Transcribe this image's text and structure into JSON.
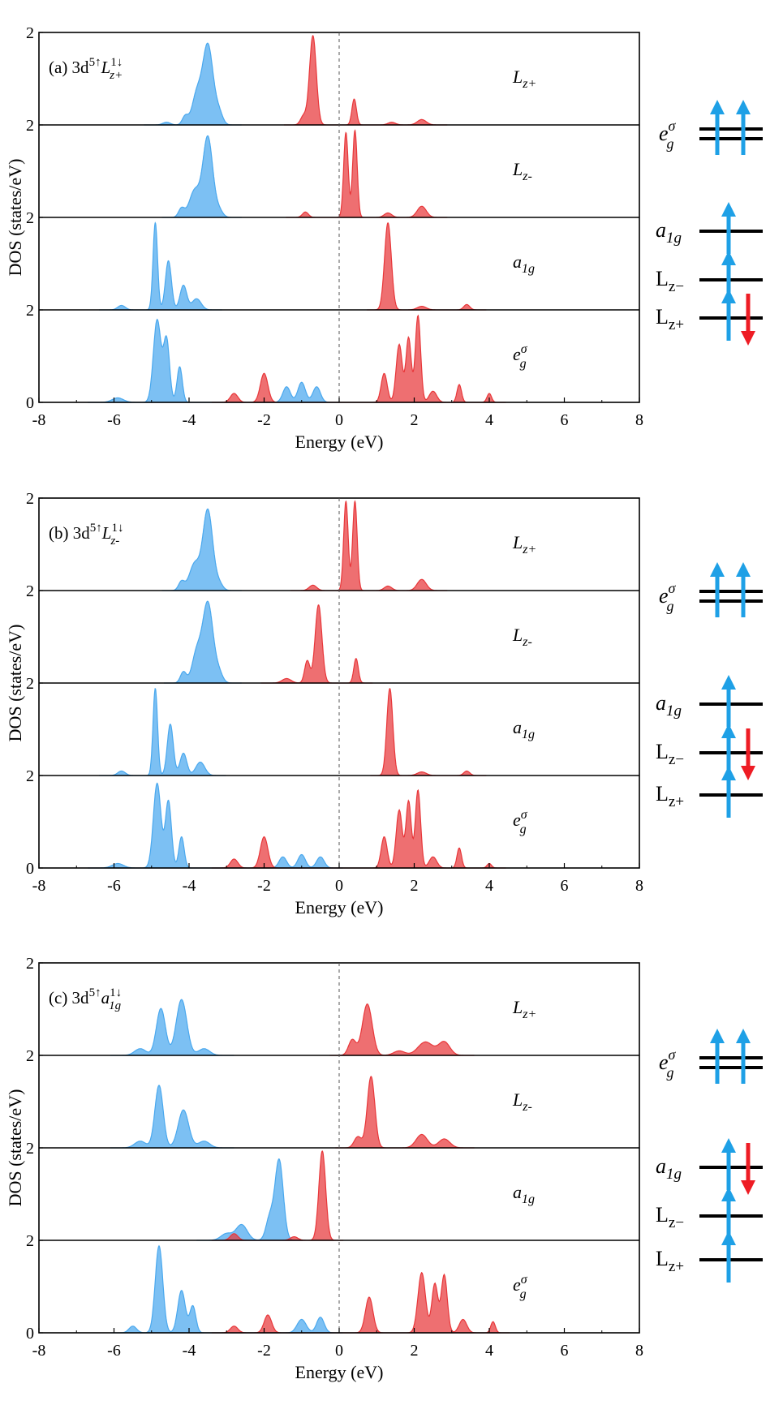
{
  "chart_data": [
    {
      "type": "area",
      "panel_label": "(a) 3d",
      "config_sup": "5↑",
      "config_orbital": "L",
      "config_sub": "z+",
      "config_orbsup": "1↓",
      "xlabel": "Energy (eV)",
      "ylabel": "DOS (states/eV)",
      "xlim": [
        -8,
        8
      ],
      "ylim": [
        0,
        2
      ],
      "x_ticks": [
        "-8",
        "-6",
        "-4",
        "-2",
        "0",
        "2",
        "4",
        "6",
        "8"
      ],
      "y_ticks": [
        "2",
        "2",
        "2",
        "2",
        "0"
      ],
      "series_colors": {
        "spin_up": "#4aa8ee",
        "spin_down": "#e8373a"
      },
      "subpanels": [
        {
          "orbital": "L",
          "sub": "z+",
          "spin_up": [
            {
              "e": -3.5,
              "h": 1.8,
              "w": 0.14
            },
            {
              "e": -3.8,
              "h": 0.65,
              "w": 0.12
            },
            {
              "e": -4.1,
              "h": 0.2,
              "w": 0.08
            },
            {
              "e": -3.2,
              "h": 0.25,
              "w": 0.1
            },
            {
              "e": -4.6,
              "h": 0.06,
              "w": 0.1
            }
          ],
          "spin_down": [
            {
              "e": -0.7,
              "h": 2.0,
              "w": 0.09
            },
            {
              "e": -0.95,
              "h": 0.2,
              "w": 0.08
            },
            {
              "e": 0.4,
              "h": 0.58,
              "w": 0.06
            },
            {
              "e": 2.2,
              "h": 0.12,
              "w": 0.12
            },
            {
              "e": 1.4,
              "h": 0.06,
              "w": 0.1
            }
          ]
        },
        {
          "orbital": "L",
          "sub": "z-",
          "spin_up": [
            {
              "e": -3.5,
              "h": 1.8,
              "w": 0.13
            },
            {
              "e": -3.85,
              "h": 0.6,
              "w": 0.14
            },
            {
              "e": -4.2,
              "h": 0.2,
              "w": 0.08
            },
            {
              "e": -3.2,
              "h": 0.15,
              "w": 0.1
            }
          ],
          "spin_down": [
            {
              "e": 0.18,
              "h": 1.9,
              "w": 0.06
            },
            {
              "e": 0.42,
              "h": 1.95,
              "w": 0.06
            },
            {
              "e": 2.2,
              "h": 0.25,
              "w": 0.12
            },
            {
              "e": 1.3,
              "h": 0.1,
              "w": 0.1
            },
            {
              "e": -0.9,
              "h": 0.12,
              "w": 0.08
            }
          ]
        },
        {
          "orbital": "a",
          "sub": "1g",
          "spin_up": [
            {
              "e": -4.9,
              "h": 1.95,
              "w": 0.06
            },
            {
              "e": -4.55,
              "h": 1.1,
              "w": 0.08
            },
            {
              "e": -4.15,
              "h": 0.55,
              "w": 0.09
            },
            {
              "e": -3.8,
              "h": 0.25,
              "w": 0.12
            },
            {
              "e": -5.8,
              "h": 0.1,
              "w": 0.1
            }
          ],
          "spin_down": [
            {
              "e": 1.3,
              "h": 1.95,
              "w": 0.09
            },
            {
              "e": 2.2,
              "h": 0.08,
              "w": 0.12
            },
            {
              "e": 3.4,
              "h": 0.12,
              "w": 0.08
            }
          ]
        },
        {
          "orbital": "e",
          "sub": "g",
          "sup": "σ",
          "spin_up": [
            {
              "e": -4.85,
              "h": 1.85,
              "w": 0.1
            },
            {
              "e": -4.6,
              "h": 1.4,
              "w": 0.08
            },
            {
              "e": -4.25,
              "h": 0.8,
              "w": 0.07
            },
            {
              "e": -1.4,
              "h": 0.35,
              "w": 0.1
            },
            {
              "e": -1.0,
              "h": 0.45,
              "w": 0.1
            },
            {
              "e": -0.6,
              "h": 0.35,
              "w": 0.1
            },
            {
              "e": -5.9,
              "h": 0.1,
              "w": 0.15
            }
          ],
          "spin_down": [
            {
              "e": -2.0,
              "h": 0.65,
              "w": 0.1
            },
            {
              "e": -2.8,
              "h": 0.2,
              "w": 0.1
            },
            {
              "e": 1.2,
              "h": 0.65,
              "w": 0.08
            },
            {
              "e": 1.6,
              "h": 1.3,
              "w": 0.08
            },
            {
              "e": 1.85,
              "h": 1.45,
              "w": 0.07
            },
            {
              "e": 2.1,
              "h": 1.95,
              "w": 0.07
            },
            {
              "e": 2.5,
              "h": 0.25,
              "w": 0.1
            },
            {
              "e": 3.2,
              "h": 0.4,
              "w": 0.06
            },
            {
              "e": 4.0,
              "h": 0.2,
              "w": 0.06
            }
          ]
        }
      ]
    },
    {
      "type": "area",
      "panel_label": "(b) 3d",
      "config_sup": "5↑",
      "config_orbital": "L",
      "config_sub": "z-",
      "config_orbsup": "1↓",
      "xlabel": "Energy (eV)",
      "ylabel": "DOS (states/eV)",
      "xlim": [
        -8,
        8
      ],
      "ylim": [
        0,
        2
      ],
      "x_ticks": [
        "-8",
        "-6",
        "-4",
        "-2",
        "0",
        "2",
        "4",
        "6",
        "8"
      ],
      "y_ticks": [
        "2",
        "2",
        "2",
        "2",
        "0"
      ],
      "series_colors": {
        "spin_up": "#4aa8ee",
        "spin_down": "#e8373a"
      },
      "subpanels": [
        {
          "orbital": "L",
          "sub": "z+",
          "spin_up": [
            {
              "e": -3.5,
              "h": 1.8,
              "w": 0.13
            },
            {
              "e": -3.85,
              "h": 0.6,
              "w": 0.14
            },
            {
              "e": -4.2,
              "h": 0.2,
              "w": 0.08
            },
            {
              "e": -3.2,
              "h": 0.15,
              "w": 0.1
            }
          ],
          "spin_down": [
            {
              "e": 0.18,
              "h": 2.0,
              "w": 0.06
            },
            {
              "e": 0.42,
              "h": 2.0,
              "w": 0.06
            },
            {
              "e": 2.2,
              "h": 0.25,
              "w": 0.12
            },
            {
              "e": 1.3,
              "h": 0.1,
              "w": 0.1
            },
            {
              "e": -0.7,
              "h": 0.12,
              "w": 0.1
            }
          ]
        },
        {
          "orbital": "L",
          "sub": "z-",
          "spin_up": [
            {
              "e": -3.5,
              "h": 1.8,
              "w": 0.14
            },
            {
              "e": -3.8,
              "h": 0.65,
              "w": 0.12
            },
            {
              "e": -4.15,
              "h": 0.25,
              "w": 0.08
            },
            {
              "e": -3.2,
              "h": 0.2,
              "w": 0.1
            }
          ],
          "spin_down": [
            {
              "e": -0.55,
              "h": 1.75,
              "w": 0.09
            },
            {
              "e": -0.85,
              "h": 0.5,
              "w": 0.07
            },
            {
              "e": 0.45,
              "h": 0.55,
              "w": 0.06
            },
            {
              "e": -1.4,
              "h": 0.1,
              "w": 0.12
            }
          ]
        },
        {
          "orbital": "a",
          "sub": "1g",
          "spin_up": [
            {
              "e": -4.9,
              "h": 1.95,
              "w": 0.06
            },
            {
              "e": -4.5,
              "h": 1.15,
              "w": 0.08
            },
            {
              "e": -4.15,
              "h": 0.5,
              "w": 0.09
            },
            {
              "e": -3.7,
              "h": 0.3,
              "w": 0.12
            },
            {
              "e": -5.8,
              "h": 0.1,
              "w": 0.1
            }
          ],
          "spin_down": [
            {
              "e": 1.35,
              "h": 1.95,
              "w": 0.08
            },
            {
              "e": 2.2,
              "h": 0.08,
              "w": 0.12
            },
            {
              "e": 3.4,
              "h": 0.1,
              "w": 0.08
            }
          ]
        },
        {
          "orbital": "e",
          "sub": "g",
          "sup": "σ",
          "spin_up": [
            {
              "e": -4.85,
              "h": 1.9,
              "w": 0.1
            },
            {
              "e": -4.55,
              "h": 1.5,
              "w": 0.08
            },
            {
              "e": -4.2,
              "h": 0.7,
              "w": 0.07
            },
            {
              "e": -1.5,
              "h": 0.25,
              "w": 0.1
            },
            {
              "e": -1.0,
              "h": 0.3,
              "w": 0.1
            },
            {
              "e": -0.5,
              "h": 0.25,
              "w": 0.1
            },
            {
              "e": -5.9,
              "h": 0.1,
              "w": 0.15
            }
          ],
          "spin_down": [
            {
              "e": -2.0,
              "h": 0.7,
              "w": 0.1
            },
            {
              "e": -2.8,
              "h": 0.2,
              "w": 0.1
            },
            {
              "e": 1.2,
              "h": 0.7,
              "w": 0.08
            },
            {
              "e": 1.6,
              "h": 1.3,
              "w": 0.08
            },
            {
              "e": 1.85,
              "h": 1.5,
              "w": 0.07
            },
            {
              "e": 2.1,
              "h": 1.75,
              "w": 0.07
            },
            {
              "e": 2.5,
              "h": 0.25,
              "w": 0.1
            },
            {
              "e": 3.2,
              "h": 0.45,
              "w": 0.06
            },
            {
              "e": 4.0,
              "h": 0.1,
              "w": 0.06
            }
          ]
        }
      ]
    },
    {
      "type": "area",
      "panel_label": "(c) 3d",
      "config_sup": "5↑",
      "config_orbital": "a",
      "config_sub": "1g",
      "config_orbsup": "1↓",
      "xlabel": "Energy (eV)",
      "ylabel": "DOS (states/eV)",
      "xlim": [
        -8,
        8
      ],
      "ylim": [
        0,
        2
      ],
      "x_ticks": [
        "-8",
        "-6",
        "-4",
        "-2",
        "0",
        "2",
        "4",
        "6",
        "8"
      ],
      "y_ticks": [
        "2",
        "2",
        "2",
        "2",
        "0"
      ],
      "series_colors": {
        "spin_up": "#4aa8ee",
        "spin_down": "#e8373a"
      },
      "subpanels": [
        {
          "orbital": "L",
          "sub": "z+",
          "spin_up": [
            {
              "e": -4.75,
              "h": 1.05,
              "w": 0.12
            },
            {
              "e": -4.2,
              "h": 1.25,
              "w": 0.14
            },
            {
              "e": -5.3,
              "h": 0.15,
              "w": 0.15
            },
            {
              "e": -3.6,
              "h": 0.15,
              "w": 0.15
            }
          ],
          "spin_down": [
            {
              "e": 0.75,
              "h": 1.15,
              "w": 0.13
            },
            {
              "e": 0.35,
              "h": 0.35,
              "w": 0.1
            },
            {
              "e": 2.3,
              "h": 0.3,
              "w": 0.2
            },
            {
              "e": 2.8,
              "h": 0.3,
              "w": 0.15
            },
            {
              "e": 1.6,
              "h": 0.1,
              "w": 0.15
            }
          ]
        },
        {
          "orbital": "L",
          "sub": "z-",
          "spin_up": [
            {
              "e": -4.8,
              "h": 1.4,
              "w": 0.11
            },
            {
              "e": -4.15,
              "h": 0.85,
              "w": 0.14
            },
            {
              "e": -5.3,
              "h": 0.15,
              "w": 0.15
            },
            {
              "e": -3.6,
              "h": 0.15,
              "w": 0.15
            }
          ],
          "spin_down": [
            {
              "e": 0.85,
              "h": 1.6,
              "w": 0.1
            },
            {
              "e": 0.5,
              "h": 0.25,
              "w": 0.1
            },
            {
              "e": 2.2,
              "h": 0.3,
              "w": 0.15
            },
            {
              "e": 2.8,
              "h": 0.2,
              "w": 0.15
            }
          ]
        },
        {
          "orbital": "a",
          "sub": "1g",
          "spin_up": [
            {
              "e": -1.6,
              "h": 1.8,
              "w": 0.11
            },
            {
              "e": -1.85,
              "h": 0.5,
              "w": 0.1
            },
            {
              "e": -2.6,
              "h": 0.35,
              "w": 0.15
            },
            {
              "e": -3.0,
              "h": 0.15,
              "w": 0.15
            }
          ],
          "spin_down": [
            {
              "e": -0.45,
              "h": 2.0,
              "w": 0.09
            },
            {
              "e": -2.8,
              "h": 0.15,
              "w": 0.1
            },
            {
              "e": -1.2,
              "h": 0.08,
              "w": 0.1
            }
          ]
        },
        {
          "orbital": "e",
          "sub": "g",
          "sup": "σ",
          "spin_up": [
            {
              "e": -4.8,
              "h": 1.95,
              "w": 0.1
            },
            {
              "e": -4.2,
              "h": 0.95,
              "w": 0.1
            },
            {
              "e": -3.9,
              "h": 0.6,
              "w": 0.08
            },
            {
              "e": -1.0,
              "h": 0.3,
              "w": 0.12
            },
            {
              "e": -0.5,
              "h": 0.35,
              "w": 0.1
            },
            {
              "e": -5.5,
              "h": 0.15,
              "w": 0.1
            }
          ],
          "spin_down": [
            {
              "e": -1.9,
              "h": 0.4,
              "w": 0.1
            },
            {
              "e": -2.8,
              "h": 0.15,
              "w": 0.1
            },
            {
              "e": 0.8,
              "h": 0.8,
              "w": 0.1
            },
            {
              "e": 2.2,
              "h": 1.35,
              "w": 0.1
            },
            {
              "e": 2.55,
              "h": 1.1,
              "w": 0.08
            },
            {
              "e": 2.8,
              "h": 1.3,
              "w": 0.08
            },
            {
              "e": 3.3,
              "h": 0.3,
              "w": 0.1
            },
            {
              "e": 4.1,
              "h": 0.25,
              "w": 0.06
            }
          ]
        }
      ]
    }
  ],
  "level_diagrams": [
    {
      "levels": [
        {
          "label": "e",
          "sub": "g",
          "sup": "σ",
          "double": true,
          "up": 2,
          "down": 0
        },
        {
          "label": "a",
          "sub": "1g",
          "up": 1,
          "down": 0
        },
        {
          "label": "L",
          "sub": "z−",
          "up": 1,
          "down": 0
        },
        {
          "label": "L",
          "sub": "z+",
          "up": 1,
          "down": 1
        }
      ]
    },
    {
      "levels": [
        {
          "label": "e",
          "sub": "g",
          "sup": "σ",
          "double": true,
          "up": 2,
          "down": 0
        },
        {
          "label": "a",
          "sub": "1g",
          "up": 1,
          "down": 0
        },
        {
          "label": "L",
          "sub": "z−",
          "up": 1,
          "down": 1
        },
        {
          "label": "L",
          "sub": "z+",
          "up": 1,
          "down": 0
        }
      ]
    },
    {
      "levels": [
        {
          "label": "e",
          "sub": "g",
          "sup": "σ",
          "double": true,
          "up": 2,
          "down": 0
        },
        {
          "label": "a",
          "sub": "1g",
          "up": 1,
          "down": 1
        },
        {
          "label": "L",
          "sub": "z−",
          "up": 1,
          "down": 0
        },
        {
          "label": "L",
          "sub": "z+",
          "up": 1,
          "down": 0
        }
      ]
    }
  ]
}
